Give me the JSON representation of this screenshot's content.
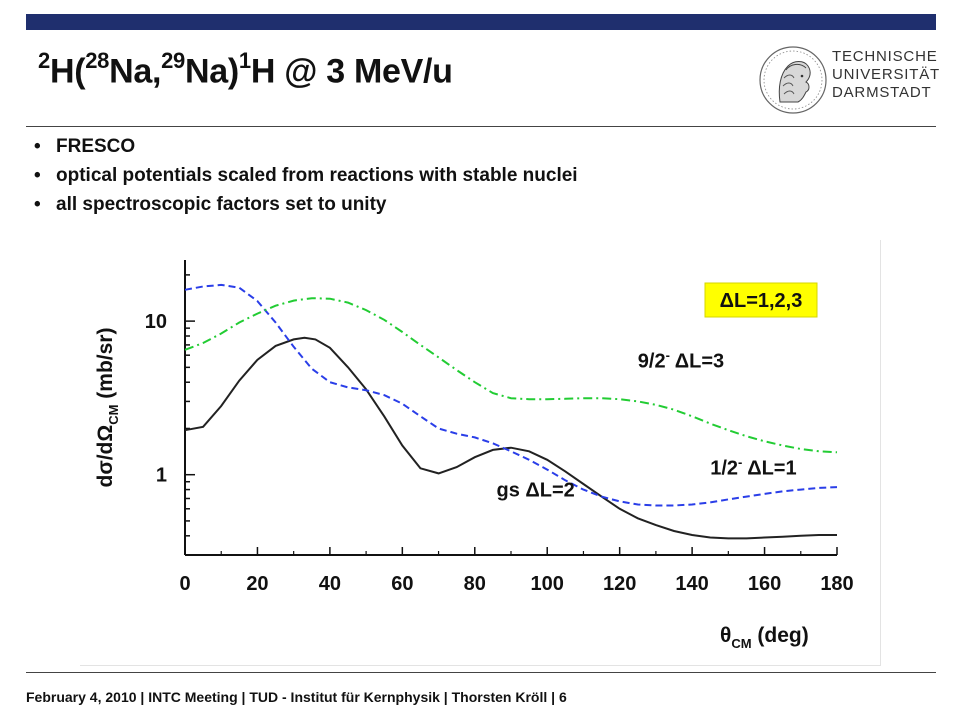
{
  "slide": {
    "title_parts": [
      "2",
      "H(",
      "28",
      "Na,",
      "29",
      "Na)",
      "1",
      "H @ 3 MeV/u"
    ],
    "bullets": [
      "FRESCO",
      "optical potentials scaled from reactions with stable nuclei",
      "all spectroscopic factors set to unity"
    ],
    "logo_lines": [
      "TECHNISCHE",
      "UNIVERSITÄT",
      "DARMSTADT"
    ],
    "footer": "February 4, 2010  |  INTC Meeting |  TUD - Institut für Kernphysik  |  Thorsten Kröll  |  6",
    "accent": "#1f2f6e"
  },
  "chart_data": {
    "type": "line",
    "xlabel": "θCM (deg)",
    "ylabel": "dσ/dΩCM (mb/sr)",
    "xlim": [
      0,
      180
    ],
    "ylim": [
      0.3,
      25
    ],
    "yscale": "log",
    "x_ticks": [
      0,
      20,
      40,
      60,
      80,
      100,
      120,
      140,
      160,
      180
    ],
    "y_ticks": [
      1,
      10
    ],
    "grid": false,
    "boxed_annotation": "ΔL=1,2,3",
    "series": [
      {
        "name": "gs ΔL=2",
        "color": "#222222",
        "style": "solid",
        "x": [
          0,
          5,
          10,
          15,
          20,
          25,
          30,
          33,
          36,
          40,
          45,
          50,
          55,
          60,
          65,
          70,
          75,
          80,
          85,
          90,
          95,
          100,
          105,
          110,
          115,
          120,
          125,
          130,
          135,
          140,
          145,
          150,
          155,
          160,
          165,
          170,
          175,
          180
        ],
        "y": [
          1.95,
          2.05,
          2.8,
          4.1,
          5.6,
          6.9,
          7.6,
          7.8,
          7.6,
          6.7,
          5.0,
          3.6,
          2.4,
          1.55,
          1.1,
          1.02,
          1.12,
          1.3,
          1.45,
          1.5,
          1.42,
          1.25,
          1.05,
          0.87,
          0.72,
          0.6,
          0.52,
          0.47,
          0.43,
          0.405,
          0.39,
          0.385,
          0.385,
          0.39,
          0.395,
          0.4,
          0.405,
          0.405
        ]
      },
      {
        "name": "1/2- ΔL=1",
        "color": "#2a3ee8",
        "style": "dashed",
        "x": [
          0,
          5,
          10,
          15,
          20,
          25,
          30,
          35,
          40,
          45,
          50,
          55,
          60,
          65,
          70,
          75,
          80,
          85,
          90,
          95,
          100,
          105,
          110,
          115,
          120,
          125,
          130,
          135,
          140,
          145,
          150,
          155,
          160,
          165,
          170,
          175,
          180
        ],
        "y": [
          16.0,
          16.8,
          17.2,
          16.5,
          13.5,
          9.8,
          6.8,
          4.9,
          4.0,
          3.7,
          3.55,
          3.3,
          2.9,
          2.4,
          2.0,
          1.85,
          1.75,
          1.6,
          1.42,
          1.25,
          1.08,
          0.92,
          0.8,
          0.72,
          0.67,
          0.64,
          0.63,
          0.63,
          0.64,
          0.66,
          0.69,
          0.72,
          0.75,
          0.78,
          0.8,
          0.82,
          0.83
        ]
      },
      {
        "name": "9/2- ΔL=3",
        "color": "#22cc33",
        "style": "dashdot",
        "x": [
          0,
          5,
          10,
          15,
          20,
          25,
          30,
          35,
          40,
          45,
          50,
          55,
          60,
          65,
          70,
          75,
          80,
          85,
          90,
          95,
          100,
          105,
          110,
          115,
          120,
          125,
          130,
          135,
          140,
          145,
          150,
          155,
          160,
          165,
          170,
          175,
          180
        ],
        "y": [
          6.5,
          7.2,
          8.3,
          9.8,
          11.2,
          12.6,
          13.6,
          14.1,
          14.0,
          13.2,
          11.8,
          10.2,
          8.5,
          7.0,
          5.8,
          4.8,
          4.0,
          3.4,
          3.15,
          3.1,
          3.1,
          3.12,
          3.15,
          3.15,
          3.1,
          3.0,
          2.85,
          2.65,
          2.4,
          2.15,
          1.95,
          1.78,
          1.65,
          1.55,
          1.47,
          1.42,
          1.4
        ]
      }
    ],
    "annotations": [
      {
        "text": "9/2",
        "sup": "-",
        "rest": " ΔL=3",
        "x": 125,
        "y": 5.0
      },
      {
        "text": "1/2",
        "sup": "-",
        "rest": " ΔL=1",
        "x": 145,
        "y": 1.0
      },
      {
        "text": "gs ΔL=2",
        "sup": "",
        "rest": "",
        "x": 86,
        "y": 0.72
      }
    ]
  }
}
